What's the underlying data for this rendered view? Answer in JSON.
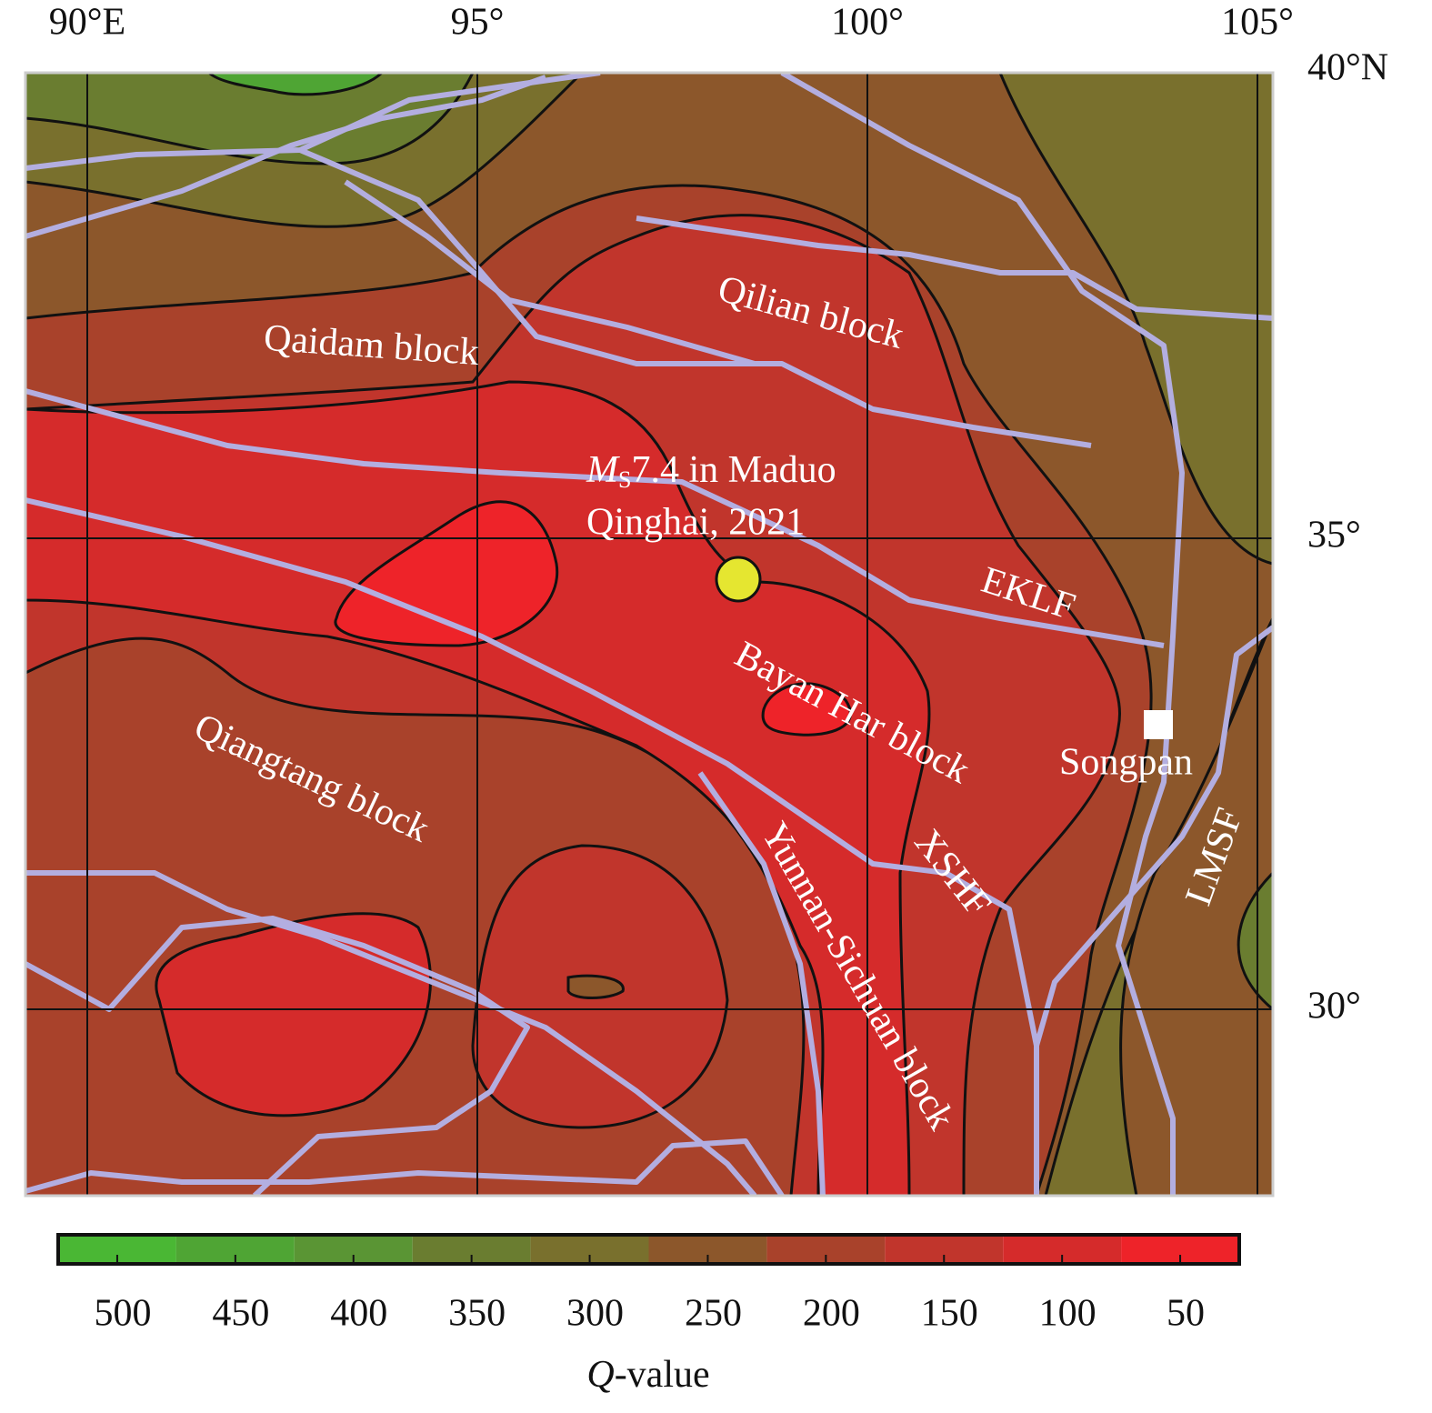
{
  "map": {
    "lon_ticks": [
      {
        "value": 90,
        "label": "90°E"
      },
      {
        "value": 95,
        "label": "95°"
      },
      {
        "value": 100,
        "label": "100°"
      },
      {
        "value": 105,
        "label": "105°"
      }
    ],
    "lat_ticks": [
      {
        "value": 40,
        "label": "40°N"
      },
      {
        "value": 35,
        "label": "35°"
      },
      {
        "value": 30,
        "label": "30°"
      }
    ],
    "blocks": [
      "Qaidam block",
      "Qilian block",
      "Bayan Har block",
      "Qiangtang block",
      "Yunnan-Sichuan block"
    ],
    "faults": [
      "EKLF",
      "XSHF",
      "LMSF"
    ],
    "earthquake": {
      "symbol": "M",
      "subscript": "S",
      "line1": "7.4 in Maduo",
      "line2": "Qinghai, 2021"
    },
    "city": "Songpan"
  },
  "colorbar": {
    "ticks": [
      500,
      450,
      400,
      350,
      300,
      250,
      200,
      150,
      100,
      50
    ],
    "colors": [
      "#4ab734",
      "#4fa534",
      "#5a9534",
      "#6a7d30",
      "#79702d",
      "#8c572b",
      "#a9422b",
      "#c1352c",
      "#d52b2b",
      "#ee2329"
    ],
    "label_italic": "Q",
    "label_rest": "-value"
  }
}
